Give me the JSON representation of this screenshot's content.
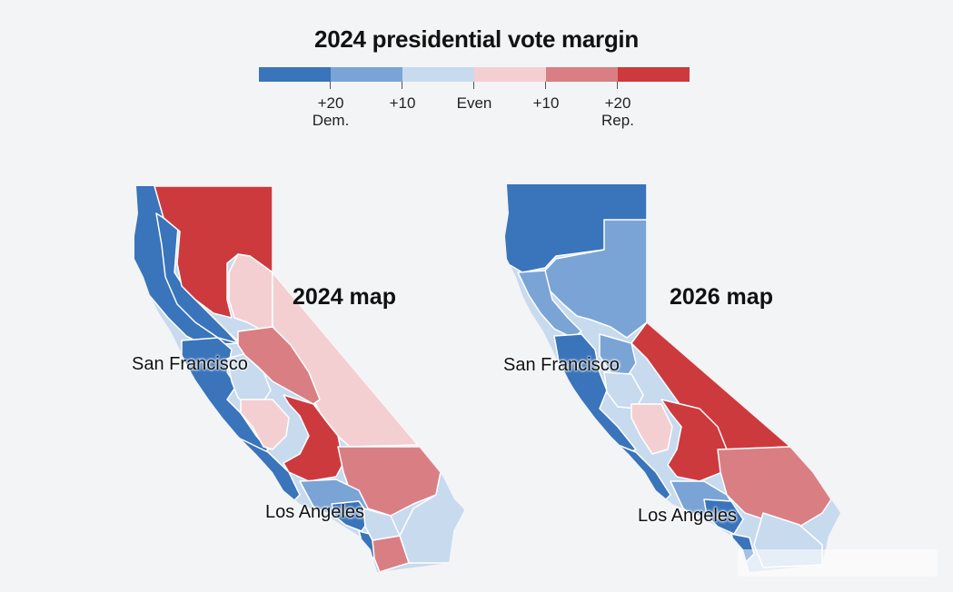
{
  "title": "2024 presidential vote margin",
  "legend": {
    "colors": [
      "#3a74bb",
      "#7aa4d6",
      "#c7daee",
      "#f4cfd2",
      "#d97f84",
      "#cc3a3e"
    ],
    "ticks": [
      {
        "line1": "+20",
        "line2": "Dem."
      },
      {
        "line1": "+10",
        "line2": ""
      },
      {
        "line1": "Even",
        "line2": ""
      },
      {
        "line1": "+10",
        "line2": ""
      },
      {
        "line1": "+20",
        "line2": "Rep."
      }
    ]
  },
  "maps": [
    {
      "title": "2024 map",
      "cities": {
        "sf": "San Francisco",
        "la": "Los Angeles"
      }
    },
    {
      "title": "2026 map",
      "cities": {
        "sf": "San Francisco",
        "la": "Los Angeles"
      }
    }
  ]
}
